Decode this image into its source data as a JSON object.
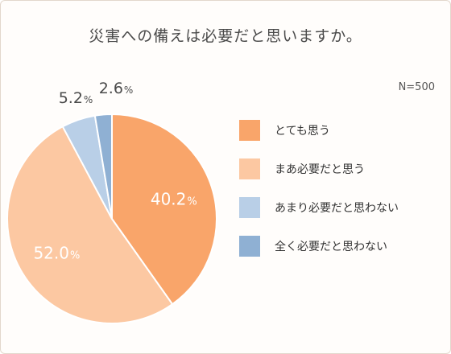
{
  "title": "災害への備えは必要だと思いますか。",
  "sample_size": "N=500",
  "chart_data": {
    "type": "pie",
    "title": "災害への備えは必要だと思いますか。",
    "categories": [
      "とても思う",
      "まあ必要だと思う",
      "あまり必要だと思わない",
      "全く必要だと思わない"
    ],
    "values": [
      40.2,
      52.0,
      5.2,
      2.6
    ],
    "labels": [
      "40.2",
      "52.0",
      "5.2",
      "2.6"
    ],
    "unit": "%",
    "colors": [
      "#f9a56a",
      "#fcc8a2",
      "#b9cfe7",
      "#8fb0d3"
    ],
    "start_angle": "12 o'clock",
    "direction": "clockwise",
    "legend_position": "right"
  }
}
